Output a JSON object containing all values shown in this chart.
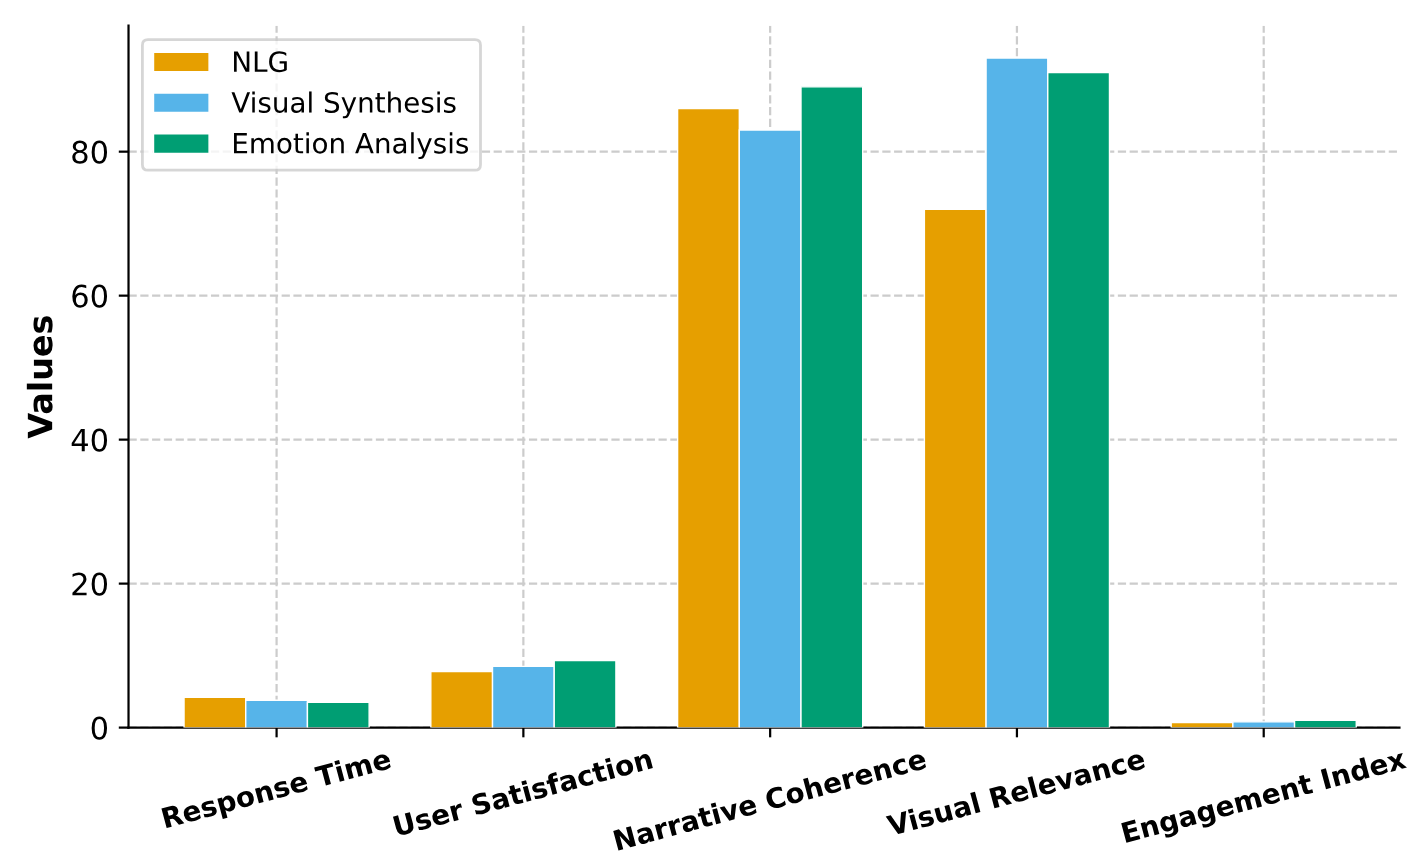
{
  "chart_data": {
    "type": "bar",
    "ylabel": "Values",
    "categories": [
      "Response Time",
      "User Satisfaction",
      "Narrative Coherence",
      "Visual Relevance",
      "Engagement Index"
    ],
    "series": [
      {
        "name": "NLG",
        "color": "#e69f00",
        "values": [
          4.2,
          7.8,
          86,
          72,
          0.7
        ]
      },
      {
        "name": "Visual Synthesis",
        "color": "#56b4e9",
        "values": [
          3.8,
          8.5,
          83,
          93,
          0.8
        ]
      },
      {
        "name": "Emotion Analysis",
        "color": "#009e73",
        "values": [
          3.5,
          9.3,
          89,
          91,
          1.0
        ]
      }
    ],
    "ylim": [
      0,
      97.5
    ],
    "yticks": [
      0,
      20,
      40,
      60,
      80
    ],
    "grid": true,
    "legend": "top left"
  }
}
